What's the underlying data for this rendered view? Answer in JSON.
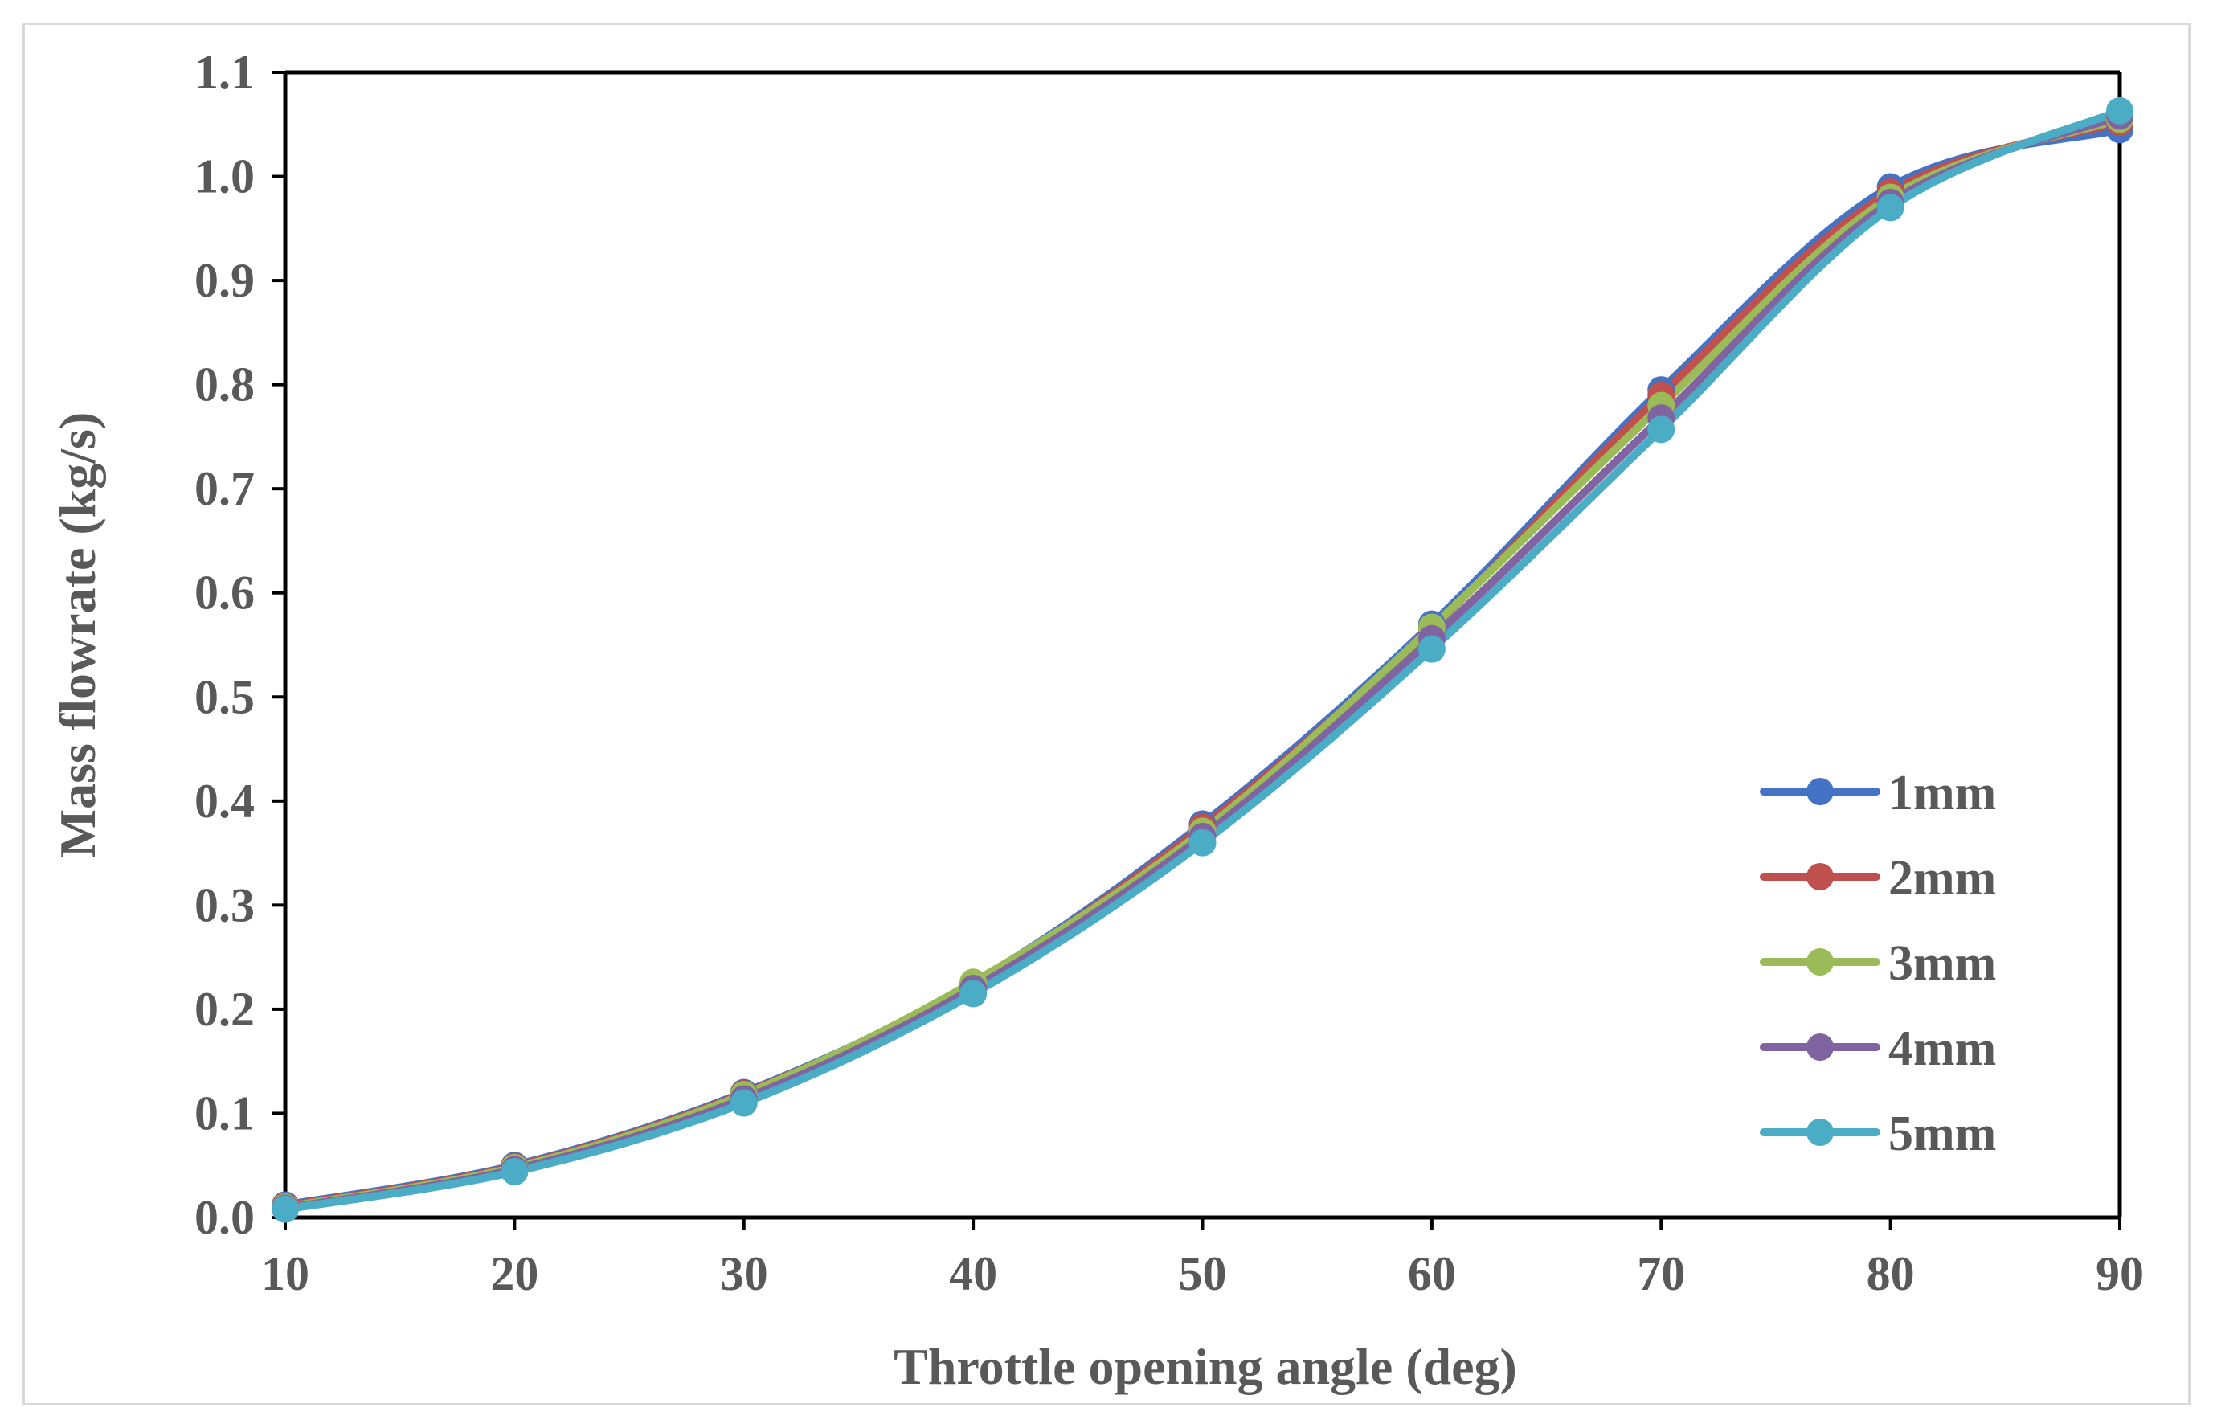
{
  "chart_data": {
    "type": "line",
    "title": "",
    "xlabel": "Throttle opening angle (deg)",
    "ylabel": "Mass flowrate (kg/s)",
    "x": [
      10,
      20,
      30,
      40,
      50,
      60,
      70,
      80,
      90
    ],
    "xlim": [
      10,
      90
    ],
    "ylim": [
      0.0,
      1.1
    ],
    "xticks": [
      "10",
      "20",
      "30",
      "40",
      "50",
      "60",
      "70",
      "80",
      "90"
    ],
    "yticks": [
      "0.0",
      "0.1",
      "0.2",
      "0.3",
      "0.4",
      "0.5",
      "0.6",
      "0.7",
      "0.8",
      "0.9",
      "1.0",
      "1.1"
    ],
    "grid": false,
    "legend_position": "bottom-right",
    "series": [
      {
        "name": "1mm",
        "color": "#4472c4",
        "values": [
          0.012,
          0.05,
          0.12,
          0.225,
          0.378,
          0.57,
          0.795,
          0.99,
          1.045
        ]
      },
      {
        "name": "2mm",
        "color": "#c0504d",
        "values": [
          0.011,
          0.049,
          0.119,
          0.224,
          0.375,
          0.566,
          0.79,
          0.985,
          1.052
        ]
      },
      {
        "name": "3mm",
        "color": "#9bbb59",
        "values": [
          0.01,
          0.048,
          0.118,
          0.226,
          0.371,
          0.567,
          0.78,
          0.98,
          1.055
        ]
      },
      {
        "name": "4mm",
        "color": "#8064a2",
        "values": [
          0.009,
          0.046,
          0.114,
          0.22,
          0.366,
          0.556,
          0.768,
          0.975,
          1.058
        ]
      },
      {
        "name": "5mm",
        "color": "#4bacc6",
        "values": [
          0.008,
          0.044,
          0.11,
          0.215,
          0.36,
          0.546,
          0.757,
          0.97,
          1.063
        ]
      }
    ]
  }
}
